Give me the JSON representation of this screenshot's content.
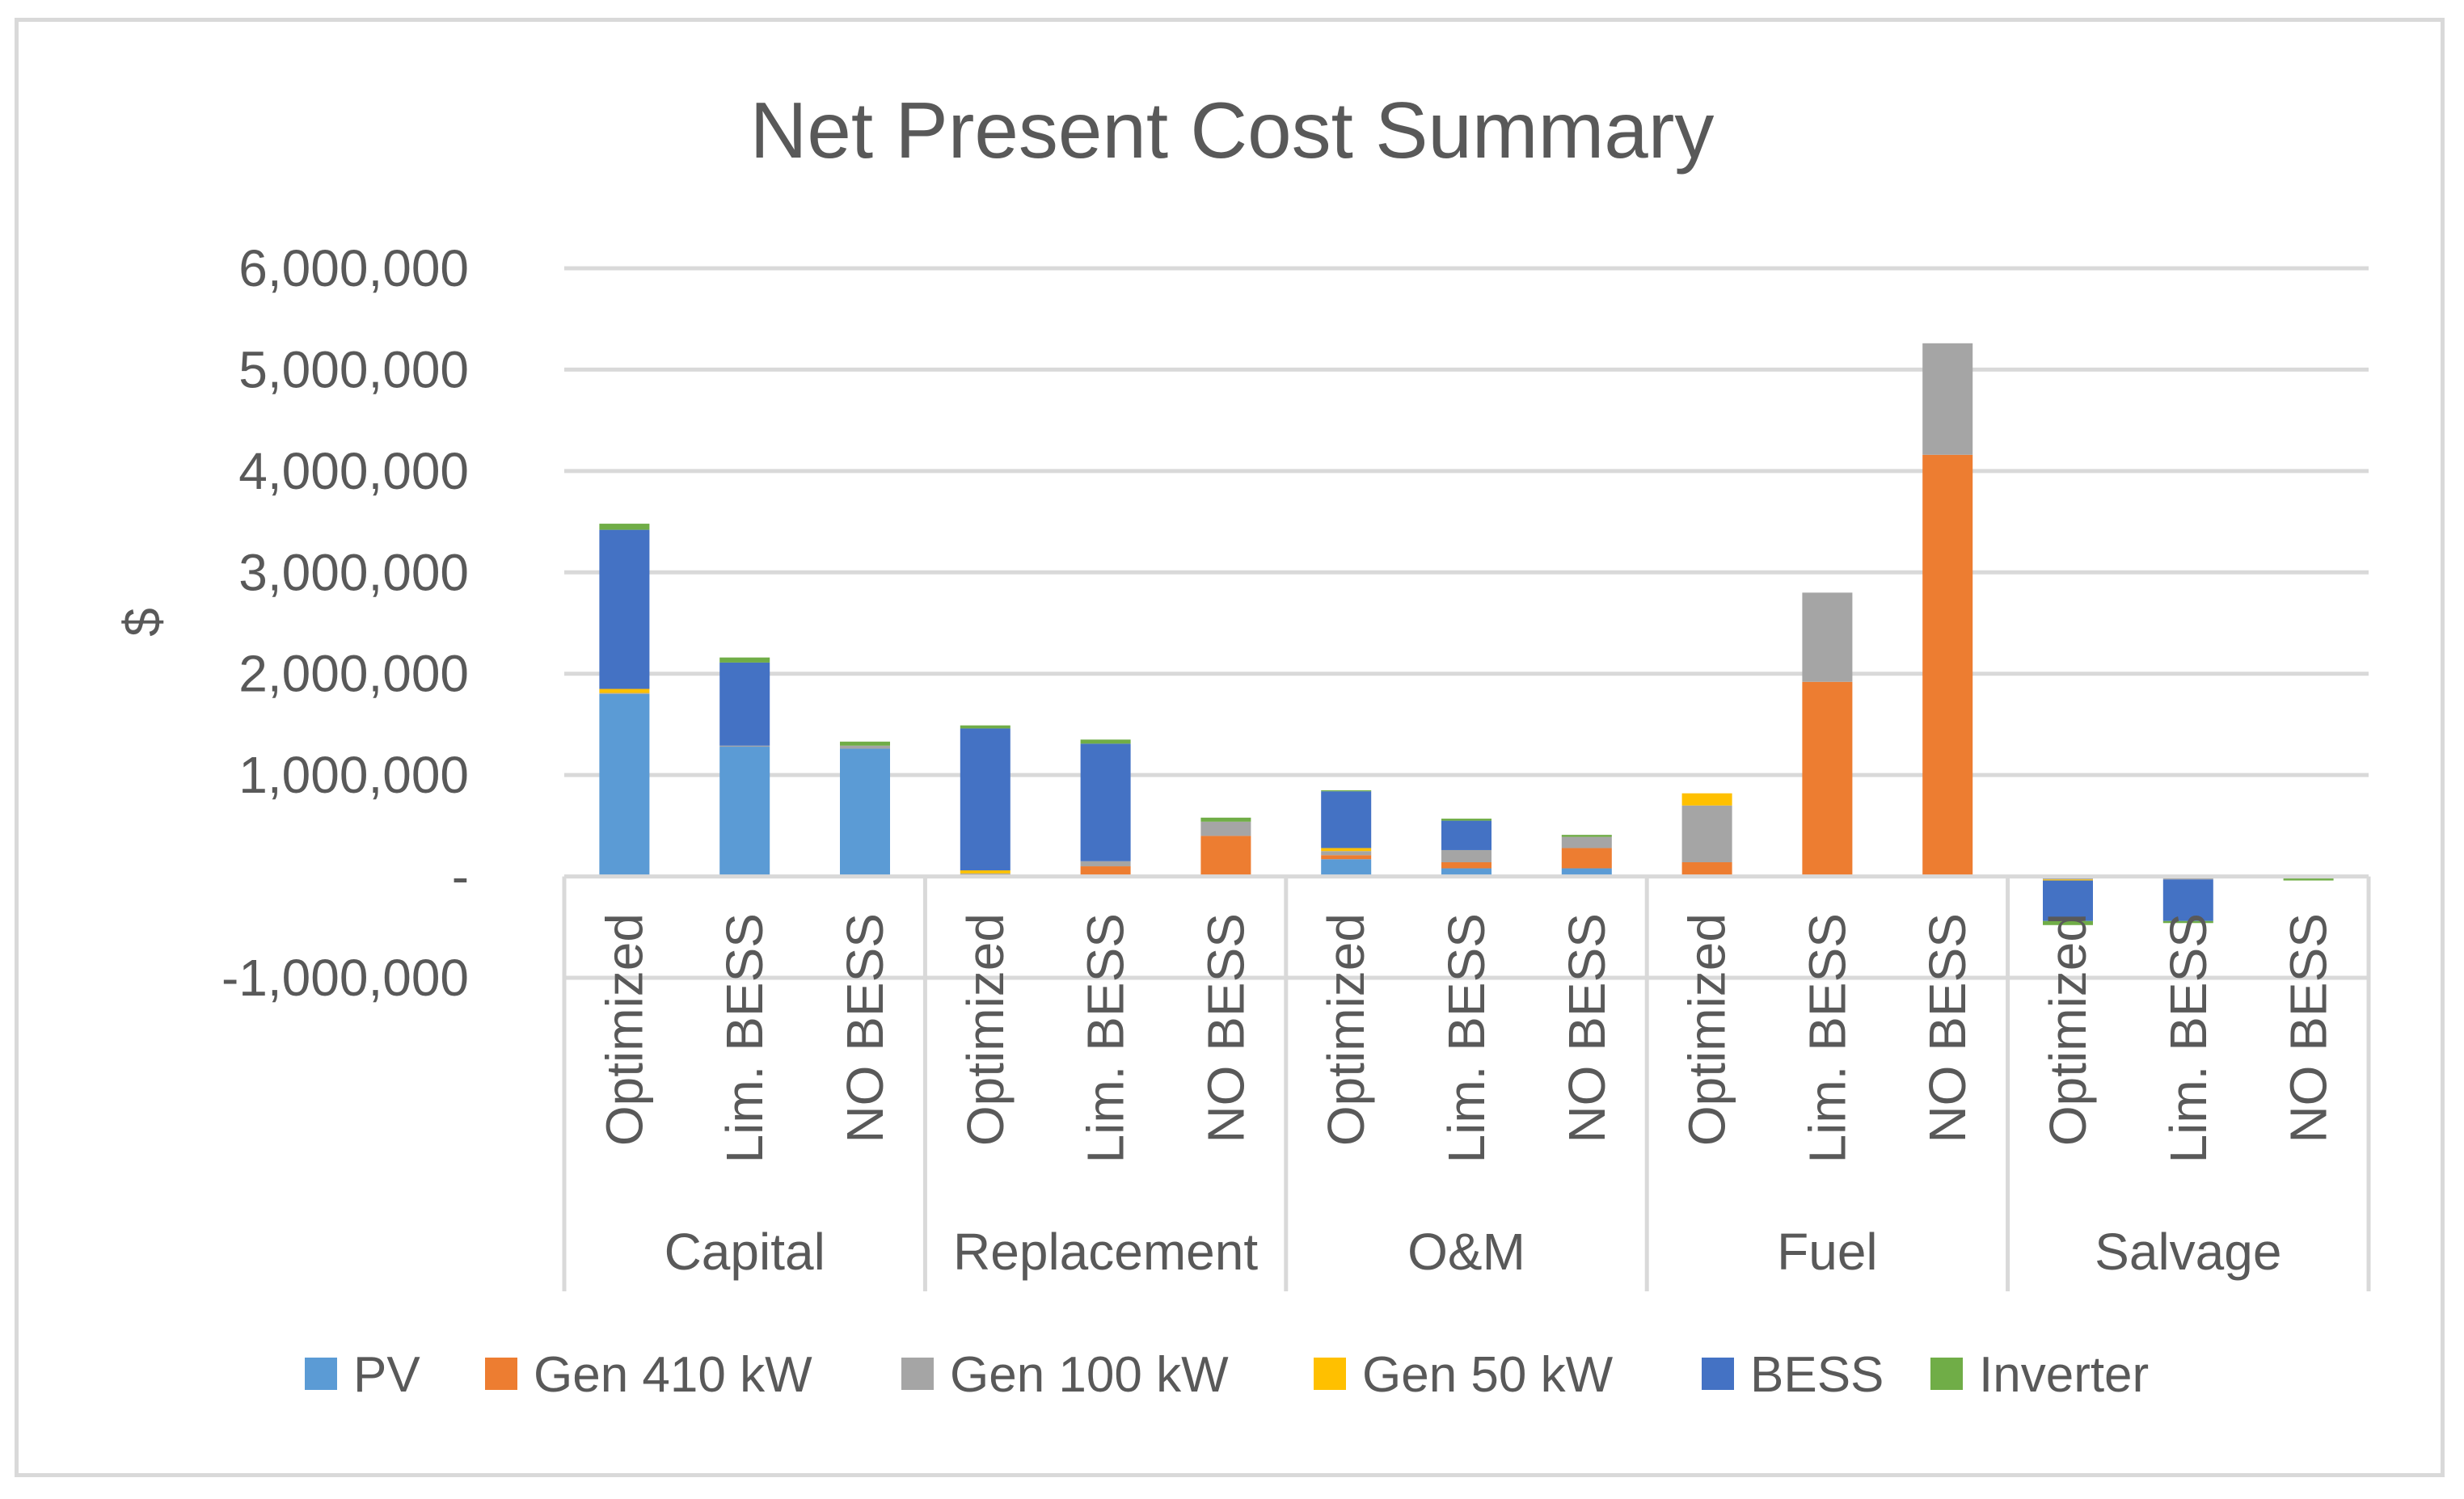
{
  "chart_data": {
    "type": "bar",
    "stacked": true,
    "title": "Net Present Cost Summary",
    "xlabel": "",
    "ylabel": "$",
    "ylim": [
      -1000000,
      6000000
    ],
    "y_ticks": [
      {
        "value": 6000000,
        "label": "6,000,000"
      },
      {
        "value": 5000000,
        "label": "5,000,000"
      },
      {
        "value": 4000000,
        "label": "4,000,000"
      },
      {
        "value": 3000000,
        "label": "3,000,000"
      },
      {
        "value": 2000000,
        "label": "2,000,000"
      },
      {
        "value": 1000000,
        "label": "1,000,000"
      },
      {
        "value": 0,
        "label": "-"
      },
      {
        "value": -1000000,
        "label": "-1,000,000"
      }
    ],
    "groups": [
      "Capital",
      "Replacement",
      "O&M",
      "Fuel",
      "Salvage"
    ],
    "subcategories": [
      "Optimized",
      "Lim. BESS",
      "NO BESS"
    ],
    "series": [
      {
        "name": "PV",
        "color": "#5B9BD5",
        "values": [
          1800000,
          1280000,
          1260000,
          10000,
          10000,
          0,
          170000,
          80000,
          80000,
          0,
          0,
          0,
          0,
          0,
          0
        ]
      },
      {
        "name": "Gen 410 kW",
        "color": "#ED7D31",
        "values": [
          0,
          0,
          0,
          10000,
          90000,
          400000,
          40000,
          60000,
          200000,
          140000,
          1920000,
          4160000,
          0,
          0,
          0
        ]
      },
      {
        "name": "Gen 100 kW",
        "color": "#A5A5A5",
        "values": [
          10000,
          10000,
          30000,
          10000,
          50000,
          140000,
          40000,
          120000,
          110000,
          560000,
          880000,
          1100000,
          -30000,
          -30000,
          -20000
        ]
      },
      {
        "name": "Gen 50 kW",
        "color": "#FFC000",
        "values": [
          40000,
          0,
          0,
          30000,
          0,
          0,
          30000,
          0,
          0,
          120000,
          0,
          0,
          -10000,
          0,
          0
        ]
      },
      {
        "name": "BESS",
        "color": "#4472C4",
        "values": [
          1570000,
          820000,
          0,
          1400000,
          1160000,
          0,
          560000,
          290000,
          0,
          0,
          0,
          0,
          -400000,
          -410000,
          0
        ]
      },
      {
        "name": "Inverter",
        "color": "#70AD47",
        "values": [
          60000,
          50000,
          40000,
          30000,
          40000,
          40000,
          10000,
          20000,
          20000,
          0,
          0,
          0,
          -40000,
          -20000,
          -20000
        ]
      }
    ]
  }
}
